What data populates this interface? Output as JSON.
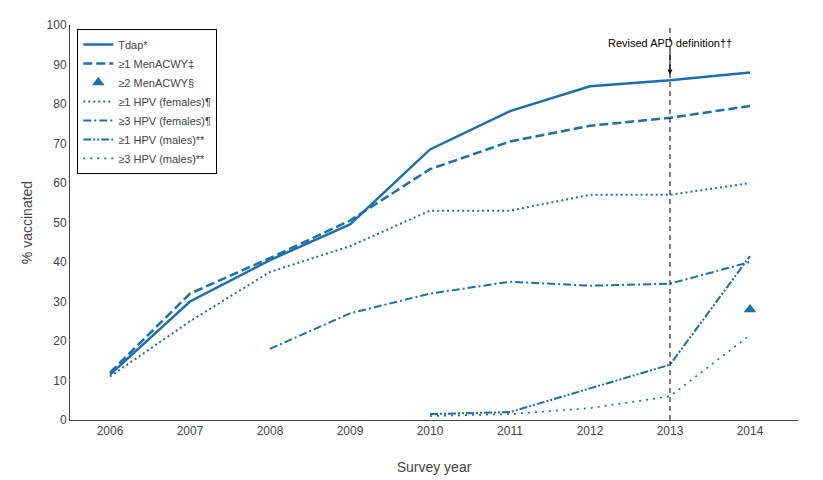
{
  "chart_data": {
    "type": "line",
    "xlabel": "Survey year",
    "ylabel": "% vaccinated",
    "xlim": [
      2005.5,
      2014.6
    ],
    "xticks": [
      2006,
      2007,
      2008,
      2009,
      2010,
      2011,
      2012,
      2013,
      2014
    ],
    "ylim": [
      0,
      100
    ],
    "yticks": [
      0,
      10,
      20,
      30,
      40,
      50,
      60,
      70,
      80,
      90,
      100
    ],
    "grid": false,
    "legend": "upper left",
    "series": [
      {
        "name": "Tdap*",
        "x": [
          2006,
          2007,
          2008,
          2009,
          2010,
          2011,
          2012,
          2013,
          2014
        ],
        "values": [
          11.5,
          30.0,
          40.5,
          49.5,
          68.5,
          78.2,
          84.5,
          86.0,
          88.0
        ],
        "color": "#1a6faf",
        "line_style": "solid"
      },
      {
        "name": "≥1 MenACWY‡",
        "x": [
          2006,
          2007,
          2008,
          2009,
          2010,
          2011,
          2012,
          2013,
          2014
        ],
        "values": [
          12.0,
          32.0,
          41.0,
          50.5,
          63.5,
          70.5,
          74.5,
          76.5,
          79.5
        ],
        "color": "#1a6faf",
        "line_style": "dashed"
      },
      {
        "name": "≥2 MenACWY§",
        "x": [
          2014
        ],
        "values": [
          28.0
        ],
        "color": "#1a6faf",
        "line_style": "none",
        "marker": "triangle"
      },
      {
        "name": "≥1 HPV (females)¶",
        "x": [
          2006,
          2007,
          2008,
          2009,
          2010,
          2011,
          2012,
          2013,
          2014
        ],
        "values": [
          11.0,
          25.0,
          37.5,
          44.0,
          53.0,
          53.0,
          57.0,
          57.0,
          60.0
        ],
        "color": "#1a6faf",
        "line_style": "dotted"
      },
      {
        "name": "≥3 HPV (females)¶",
        "x": [
          2008,
          2009,
          2010,
          2011,
          2012,
          2013,
          2014
        ],
        "values": [
          18.0,
          27.0,
          32.0,
          35.0,
          34.0,
          34.5,
          40.0
        ],
        "color": "#1a6faf",
        "line_style": "dashdot"
      },
      {
        "name": "≥1 HPV (males)**",
        "x": [
          2010,
          2011,
          2012,
          2013,
          2014
        ],
        "values": [
          1.5,
          2.0,
          8.0,
          14.0,
          41.5
        ],
        "color": "#1a6faf",
        "line_style": "dashdotdot"
      },
      {
        "name": "≥3 HPV (males)**",
        "x": [
          2010,
          2011,
          2012,
          2013,
          2014
        ],
        "values": [
          1.0,
          1.5,
          3.0,
          6.0,
          21.5
        ],
        "color": "#1a6faf",
        "line_style": "sparsedotted"
      }
    ],
    "vlines": [
      2013
    ],
    "annotations": [
      {
        "text": "Revised APD definition††",
        "x": 2013,
        "y": 93.5,
        "arrow_to": 87.5
      }
    ]
  }
}
